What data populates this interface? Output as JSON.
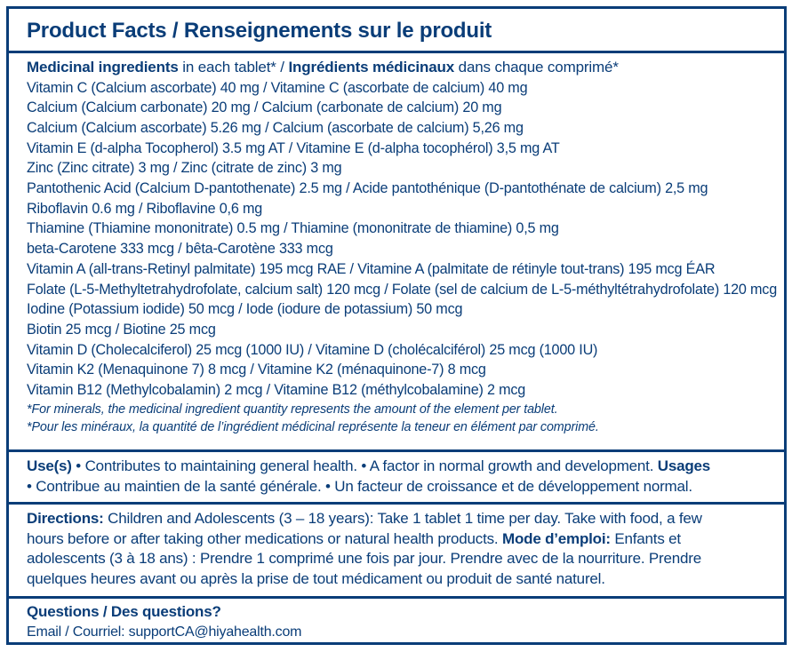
{
  "header": {
    "title": "Product Facts / Renseignements sur le produit"
  },
  "medicinal": {
    "heading_en_bold": "Medicinal ingredients",
    "heading_en_rest": " in each tablet* / ",
    "heading_fr_bold": "Ingrédients médicinaux",
    "heading_fr_rest": " dans chaque comprimé*",
    "ingredients": [
      "Vitamin C (Calcium ascorbate) 40 mg / Vitamine C (ascorbate de calcium) 40 mg",
      "Calcium (Calcium carbonate) 20 mg / Calcium (carbonate de calcium) 20 mg",
      "Calcium (Calcium ascorbate) 5.26 mg / Calcium (ascorbate de calcium) 5,26 mg",
      "Vitamin E (d-alpha Tocopherol) 3.5 mg AT / Vitamine E (d-alpha tocophérol) 3,5 mg AT",
      "Zinc (Zinc citrate) 3 mg / Zinc (citrate de zinc) 3 mg",
      "Pantothenic Acid (Calcium D-pantothenate) 2.5 mg / Acide pantothénique (D-pantothénate de calcium) 2,5 mg",
      "Riboflavin 0.6 mg / Riboflavine 0,6 mg",
      "Thiamine (Thiamine mononitrate) 0.5 mg / Thiamine (mononitrate de thiamine) 0,5 mg",
      "beta-Carotene 333 mcg / bêta-Carotène 333 mcg",
      "Vitamin A (all-trans-Retinyl palmitate) 195 mcg RAE / Vitamine A (palmitate de rétinyle tout-trans) 195 mcg ÉAR",
      "Folate (L-5-Methyltetrahydrofolate, calcium salt) 120 mcg / Folate (sel de calcium de L-5-méthyltétrahydrofolate) 120 mcg",
      "Iodine (Potassium iodide) 50 mcg / Iode (iodure de potassium) 50 mcg",
      "Biotin 25 mcg / Biotine 25 mcg",
      "Vitamin D (Cholecalciferol) 25 mcg (1000 IU) / Vitamine D (cholécalciférol) 25 mcg (1000 IU)",
      "Vitamin K2 (Menaquinone 7) 8 mcg / Vitamine K2 (ménaquinone-7) 8 mcg",
      "Vitamin B12 (Methylcobalamin) 2 mcg / Vitamine B12 (méthylcobalamine) 2 mcg"
    ],
    "note_en": "*For minerals, the medicinal ingredient quantity represents the amount of the element per tablet.",
    "note_fr": "*Pour les minéraux, la quantité de l’ingrédient médicinal représente la teneur en élément par comprimé."
  },
  "uses": {
    "label_en": "Use(s)",
    "text_en": " • Contributes to maintaining general health. • A factor in normal growth and development. ",
    "label_fr": "Usages",
    "text_fr": "• Contribue au maintien de la santé générale. • Un facteur de croissance et de développement normal."
  },
  "directions": {
    "label_en": "Directions:",
    "line1": " Children and Adolescents (3 – 18 years): Take 1 tablet 1 time per day. Take with food, a few",
    "line2_pre": "hours before or after taking other medications or natural health products. ",
    "label_fr": "Mode d’emploi:",
    "line2_post": " Enfants et",
    "line3": "adolescents (3 à 18 ans) : Prendre 1 comprimé une fois par jour. Prendre avec de la nourriture. Prendre",
    "line4": "quelques heures avant ou après la prise de tout médicament ou produit de santé naturel."
  },
  "questions": {
    "heading": "Questions / Des questions?",
    "email": "Email / Courriel: supportCA@hiyahealth.com"
  }
}
